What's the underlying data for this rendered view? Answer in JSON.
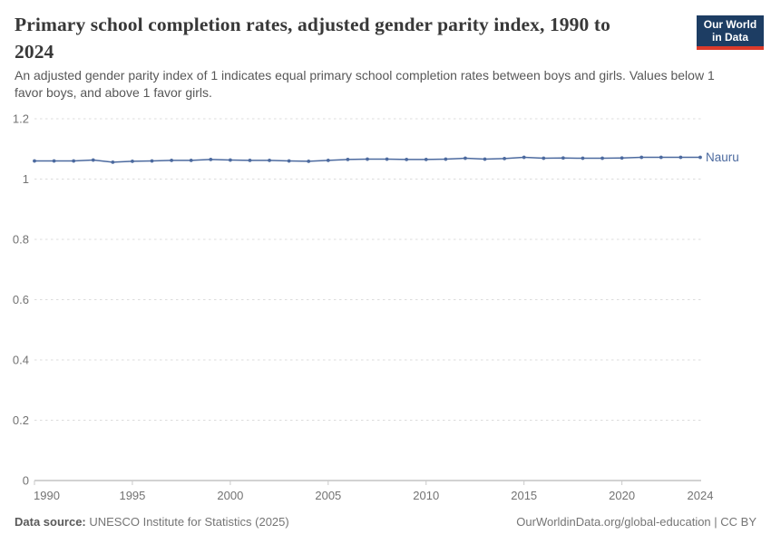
{
  "header": {
    "title": "Primary school completion rates, adjusted gender parity index, 1990 to 2024",
    "subtitle": "An adjusted gender parity index of 1 indicates equal primary school completion rates between boys and girls. Values below 1 favor boys, and above 1 favor girls.",
    "logo": {
      "line1": "Our World",
      "line2": "in Data",
      "bg_color": "#1d3d63",
      "accent_color": "#dc3a2a"
    }
  },
  "chart_data": {
    "type": "line",
    "title": "Primary school completion rates, adjusted gender parity index, 1990 to 2024",
    "x": [
      1990,
      1991,
      1992,
      1993,
      1994,
      1995,
      1996,
      1997,
      1998,
      1999,
      2000,
      2001,
      2002,
      2003,
      2004,
      2005,
      2006,
      2007,
      2008,
      2009,
      2010,
      2011,
      2012,
      2013,
      2014,
      2015,
      2016,
      2017,
      2018,
      2019,
      2020,
      2021,
      2022,
      2023,
      2024
    ],
    "series": [
      {
        "name": "Nauru",
        "color": "#4c6a9f",
        "values": [
          1.06,
          1.06,
          1.06,
          1.063,
          1.056,
          1.059,
          1.06,
          1.062,
          1.062,
          1.065,
          1.063,
          1.062,
          1.062,
          1.06,
          1.059,
          1.062,
          1.065,
          1.066,
          1.066,
          1.065,
          1.065,
          1.066,
          1.069,
          1.066,
          1.068,
          1.072,
          1.069,
          1.07,
          1.069,
          1.069,
          1.07,
          1.072,
          1.072,
          1.072,
          1.072
        ]
      }
    ],
    "xlabel": "",
    "ylabel": "",
    "xlim": [
      1990,
      2024
    ],
    "ylim": [
      0,
      1.2
    ],
    "yticks": [
      0,
      0.2,
      0.4,
      0.6,
      0.8,
      1,
      1.2
    ],
    "ytick_labels": [
      "0",
      "0.2",
      "0.4",
      "0.6",
      "0.8",
      "1",
      "1.2"
    ],
    "xticks": [
      1990,
      1995,
      2000,
      2005,
      2010,
      2015,
      2020,
      2024
    ],
    "xtick_labels": [
      "1990",
      "1995",
      "2000",
      "2005",
      "2010",
      "2015",
      "2020",
      "2024"
    ],
    "grid": true,
    "gridline_color": "#dcdcdc",
    "axis_color": "#a5a5a5",
    "tick_text_color": "#737373",
    "legend_position": "end-of-line"
  },
  "footer": {
    "source_label": "Data source:",
    "source_text": " UNESCO Institute for Statistics (2025)",
    "link_text": "OurWorldinData.org/global-education | CC BY"
  }
}
